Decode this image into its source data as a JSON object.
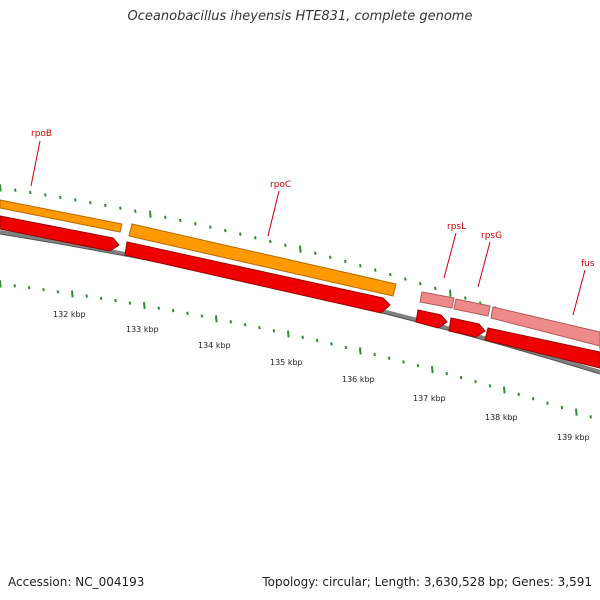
{
  "title": "Oceanobacillus iheyensis HTE831, complete genome",
  "footer": {
    "accession": "Accession: NC_004193",
    "summary": "Topology: circular; Length: 3,630,528 bp; Genes: 3,591"
  },
  "colors": {
    "backbone": "#808080",
    "orange_gene": "#ff9900",
    "red_gene": "#ee0000",
    "pink_gene": "#ee8a8a",
    "tick": "#2e8b2e",
    "label": "#cc0000"
  },
  "genes": [
    {
      "name": "rpoB",
      "track": "orange"
    },
    {
      "name": "rpoC",
      "track": "orange"
    },
    {
      "name": "rpsL",
      "track": "pink"
    },
    {
      "name": "rpsG",
      "track": "pink"
    },
    {
      "name": "fus",
      "track": "pink"
    }
  ],
  "scale_labels": [
    "132 kbp",
    "133 kbp",
    "134 kbp",
    "135 kbp",
    "136 kbp",
    "137 kbp",
    "138 kbp",
    "139 kbp"
  ]
}
